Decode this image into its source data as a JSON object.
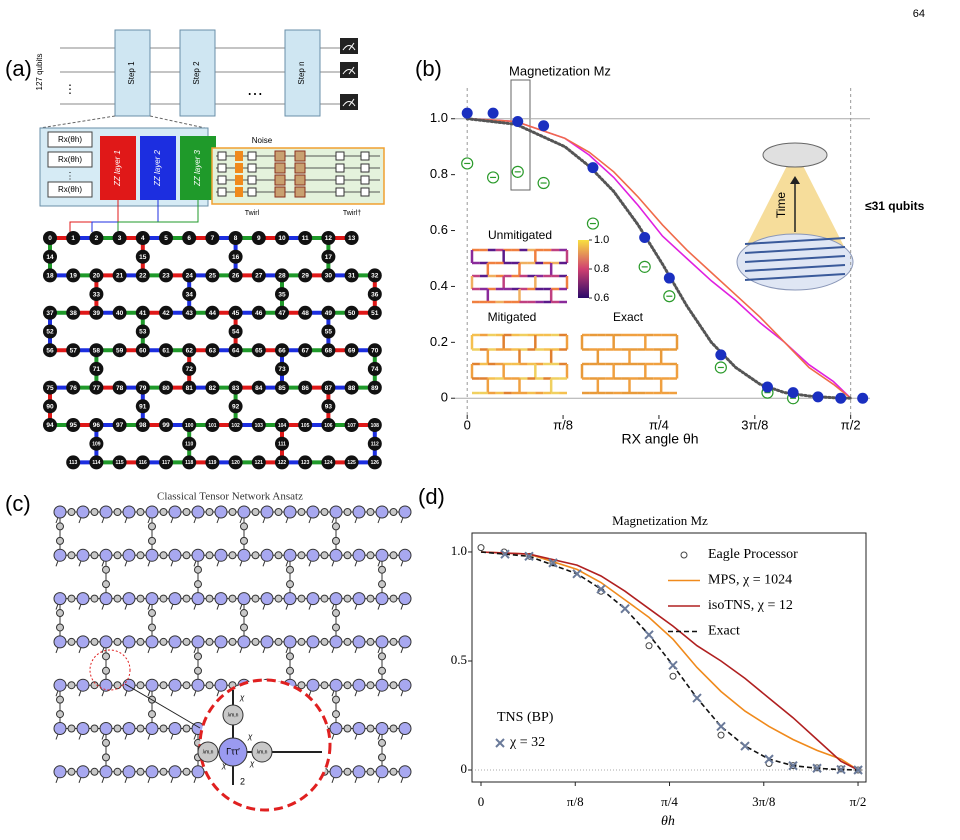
{
  "page_number": "64",
  "panel_labels": [
    "(a)",
    "(b)",
    "(c)",
    "(d)"
  ],
  "circuit": {
    "qubits": "127 qubits",
    "steps": [
      "Step 1",
      "Step 2",
      "Step n"
    ],
    "ellipsis": "⋯",
    "vdots": "⋮",
    "rotation": "Rx(θh)",
    "layers": [
      "ZZ layer 1",
      "ZZ layer 2",
      "ZZ layer 3"
    ],
    "noise": "Noise",
    "twirl": "Twirl",
    "twirl_dagger": "Twirl†",
    "lattice_nodes": [
      0,
      1,
      2,
      3,
      4,
      5,
      6,
      7,
      8,
      9,
      10,
      11,
      12,
      13,
      14,
      15,
      16,
      17,
      18,
      19,
      20,
      21,
      22,
      23,
      24,
      25,
      26,
      27,
      28,
      29,
      30,
      31,
      32,
      33,
      34,
      35,
      36,
      37,
      38,
      39,
      40,
      41,
      42,
      43,
      44,
      45,
      46,
      47,
      48,
      49,
      50,
      51,
      52,
      53,
      54,
      55,
      56,
      57,
      58,
      59,
      60,
      61,
      62,
      63,
      64,
      65,
      66,
      67,
      68,
      69,
      70,
      71,
      72,
      73,
      74,
      75,
      76,
      77,
      78,
      79,
      80,
      81,
      82,
      83,
      84,
      85,
      86,
      87,
      88,
      89,
      90,
      91,
      92,
      93,
      94,
      95,
      96,
      97,
      98,
      99,
      100,
      101,
      102,
      103,
      104,
      105,
      106,
      107,
      108,
      109,
      110,
      111,
      112,
      113,
      114,
      115,
      116,
      117,
      118,
      119,
      120,
      121,
      122,
      123,
      124,
      125,
      126
    ]
  },
  "tensor_network": {
    "title": "Classical Tensor Network Ansatz",
    "center": "Γττ′",
    "bond": "χ",
    "physical": "2",
    "lambda": "λm,n"
  },
  "inset": {
    "unmitigated": "Unmitigated",
    "mitigated": "Mitigated",
    "exact": "Exact",
    "colorbar_ticks": [
      {
        "value": 1,
        "label": "1.0"
      },
      0.8,
      0.6
    ],
    "qubits": "≤31 qubits",
    "time": "Time"
  },
  "chart_data": [
    {
      "type": "line",
      "title": "Magnetization Mz",
      "x_label": "RX angle θh",
      "xlim": [
        -0.05,
        1.65
      ],
      "ylim": [
        -0.06,
        1.11
      ],
      "xticks": [
        0,
        {
          "value": 0.3927,
          "label": "π/8"
        },
        {
          "value": 0.7854,
          "label": "π/4"
        },
        {
          "value": 1.1781,
          "label": "3π/8"
        },
        {
          "value": 1.5708,
          "label": "π/2"
        }
      ],
      "yticks": [
        0,
        0.2,
        0.4,
        0.6,
        0.8,
        {
          "value": 1,
          "label": "1.0"
        }
      ],
      "hlines": [
        0,
        1
      ],
      "vlines": [
        0,
        1.5708
      ],
      "series": [
        {
          "color": "#e020e0",
          "line_style": "solid",
          "x": [
            0,
            0.2,
            0.4,
            0.5,
            0.6,
            0.7,
            0.8,
            0.9,
            1.0,
            1.1,
            1.2,
            1.3,
            1.4,
            1.5,
            1.571
          ],
          "values": [
            1,
            0.99,
            0.93,
            0.87,
            0.79,
            0.69,
            0.58,
            0.5,
            0.42,
            0.35,
            0.27,
            0.2,
            0.12,
            0.06,
            0
          ]
        },
        {
          "color": "#f06a4a",
          "line_style": "solid",
          "x": [
            0,
            0.2,
            0.4,
            0.5,
            0.6,
            0.7,
            0.8,
            0.9,
            1.0,
            1.1,
            1.2,
            1.3,
            1.4,
            1.5,
            1.571
          ],
          "values": [
            1,
            0.99,
            0.93,
            0.88,
            0.81,
            0.72,
            0.62,
            0.53,
            0.45,
            0.37,
            0.29,
            0.2,
            0.11,
            0.05,
            0
          ]
        },
        {
          "color": "#555555",
          "line_style": "dotted",
          "x": [
            0,
            0.2,
            0.4,
            0.5,
            0.6,
            0.7,
            0.8,
            0.9,
            1.0,
            1.1,
            1.2,
            1.3,
            1.4,
            1.5,
            1.571
          ],
          "values": [
            1,
            0.98,
            0.9,
            0.83,
            0.74,
            0.62,
            0.48,
            0.33,
            0.2,
            0.11,
            0.05,
            0.02,
            0.008,
            0.002,
            0
          ]
        },
        {
          "color": "#2a9a2a",
          "marker": "circle-minus",
          "x": [
            0,
            0.106,
            0.207,
            0.313,
            0.515,
            0.727,
            0.828,
            1.039,
            1.23,
            1.335
          ],
          "values": [
            0.84,
            0.79,
            0.81,
            0.77,
            0.625,
            0.47,
            0.365,
            0.11,
            0.02,
            0
          ]
        },
        {
          "color": "#1a2fc0",
          "marker": "filled-circle",
          "x": [
            0,
            0.106,
            0.207,
            0.313,
            0.515,
            0.727,
            0.828,
            1.039,
            1.23,
            1.335,
            1.437,
            1.53,
            1.62
          ],
          "values": [
            1.02,
            1.02,
            0.99,
            0.975,
            0.825,
            0.575,
            0.43,
            0.155,
            0.04,
            0.02,
            0.005,
            0,
            0
          ]
        }
      ]
    },
    {
      "type": "line",
      "title": "Magnetization Mz",
      "x_label": "θh",
      "xlim": [
        -0.0375,
        1.604
      ],
      "ylim": [
        -0.055,
        1.087
      ],
      "xticks": [
        0,
        {
          "value": 0.3927,
          "label": "π/8"
        },
        {
          "value": 0.7854,
          "label": "π/4"
        },
        {
          "value": 1.1781,
          "label": "3π/8"
        },
        {
          "value": 1.5708,
          "label": "π/2"
        }
      ],
      "yticks": [
        0,
        0.5,
        {
          "value": 1,
          "label": "1.0"
        }
      ],
      "hlines": [
        0
      ],
      "legend": "upper right",
      "annotation": "TNS (BP)",
      "series": [
        {
          "name": "Eagle Processor",
          "color": "#444444",
          "marker": "open-circle",
          "x": [
            0,
            0.096,
            0.204,
            0.3,
            0.5,
            0.7,
            0.8,
            1.0,
            1.2,
            1.3,
            1.4,
            1.5,
            1.571
          ],
          "values": [
            1.02,
            1.0,
            0.98,
            0.95,
            0.82,
            0.57,
            0.43,
            0.16,
            0.03,
            0.02,
            0.01,
            0.005,
            0
          ]
        },
        {
          "name": "MPS, χ = 1024",
          "color": "#f08a1c",
          "line_style": "solid",
          "x": [
            0,
            0.2,
            0.4,
            0.5,
            0.6,
            0.7,
            0.8,
            0.9,
            1.0,
            1.1,
            1.2,
            1.3,
            1.4,
            1.5,
            1.571
          ],
          "values": [
            1,
            0.99,
            0.92,
            0.86,
            0.78,
            0.7,
            0.6,
            0.47,
            0.36,
            0.27,
            0.2,
            0.14,
            0.09,
            0.05,
            0
          ]
        },
        {
          "name": "isoTNS, χ = 12",
          "color": "#b02020",
          "line_style": "solid",
          "x": [
            0,
            0.2,
            0.4,
            0.5,
            0.6,
            0.7,
            0.8,
            0.9,
            1.0,
            1.1,
            1.2,
            1.3,
            1.4,
            1.5,
            1.571
          ],
          "values": [
            1,
            0.99,
            0.94,
            0.89,
            0.82,
            0.74,
            0.66,
            0.57,
            0.5,
            0.42,
            0.33,
            0.24,
            0.14,
            0.04,
            0
          ]
        },
        {
          "name": "Exact",
          "color": "#111111",
          "line_style": "dashed",
          "x": [
            0,
            0.2,
            0.4,
            0.5,
            0.6,
            0.7,
            0.8,
            0.9,
            1.0,
            1.1,
            1.2,
            1.3,
            1.4,
            1.5,
            1.571
          ],
          "values": [
            1,
            0.98,
            0.9,
            0.83,
            0.74,
            0.62,
            0.48,
            0.33,
            0.2,
            0.11,
            0.05,
            0.02,
            0.008,
            0.002,
            0
          ]
        },
        {
          "name": "χ = 32",
          "color": "#6a7a9a",
          "marker": "x",
          "legend_loc": "center left",
          "x": [
            0.1,
            0.2,
            0.3,
            0.4,
            0.5,
            0.6,
            0.7,
            0.8,
            0.9,
            1.0,
            1.1,
            1.2,
            1.3,
            1.4,
            1.5,
            1.571
          ],
          "values": [
            0.99,
            0.98,
            0.95,
            0.9,
            0.83,
            0.74,
            0.62,
            0.48,
            0.33,
            0.2,
            0.11,
            0.05,
            0.02,
            0.008,
            0.002,
            0
          ]
        }
      ]
    }
  ]
}
